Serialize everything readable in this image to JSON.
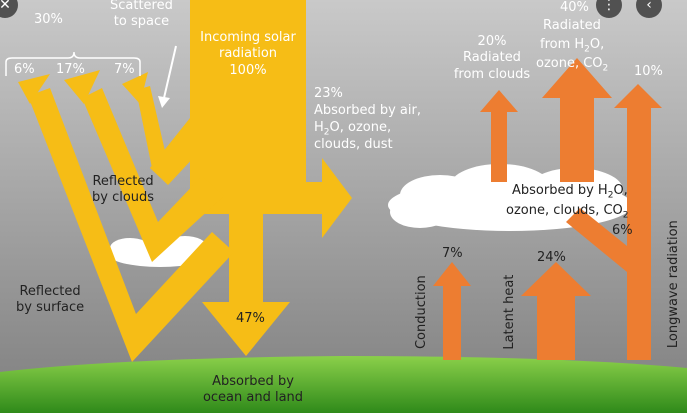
{
  "colors": {
    "sky_top": "#c9c9c9",
    "sky_bottom": "#7f7f7f",
    "ground_top": "#8bd04a",
    "ground_bottom": "#2f8a1a",
    "solar": "#f6bd16",
    "longwave": "#ed7d31",
    "cloud": "#ffffff"
  },
  "labels": {
    "scattered": "Scattered\nto space",
    "pct_30": "30%",
    "pct_6": "6%",
    "pct_17": "17%",
    "pct_7": "7%",
    "incoming": "Incoming solar\nradiation\n100%",
    "absorbed_air_pct": "23%",
    "absorbed_air_line1": "Absorbed by air,",
    "absorbed_air_line2_a": "H",
    "absorbed_air_line2_sub": "2",
    "absorbed_air_line2_b": "O, ozone,",
    "absorbed_air_line3": "clouds, dust",
    "reflected_clouds": "Reflected\nby clouds",
    "reflected_surface": "Reflected\nby surface",
    "absorbed_ocean_pct": "47%",
    "absorbed_ocean": "Absorbed by\nocean and land",
    "radiated_clouds": "20%\nRadiated\nfrom clouds",
    "radiated_h2o_pct": "40%",
    "radiated_h2o_line1": "Radiated",
    "radiated_h2o_line2_a": "from H",
    "radiated_h2o_line2_sub": "2",
    "radiated_h2o_line2_b": "O,",
    "radiated_h2o_line3_a": "ozone, CO",
    "radiated_h2o_line3_sub": "2",
    "pct_10": "10%",
    "absorbed_h2o_line1_a": "Absorbed by H",
    "absorbed_h2o_line1_sub": "2",
    "absorbed_h2o_line1_b": "O,",
    "absorbed_h2o_line2_a": "ozone, clouds, CO",
    "absorbed_h2o_line2_sub": "2",
    "absorbed_h2o_pct": "6%",
    "conduction_pct": "7%",
    "latent_pct": "24%",
    "conduction": "Conduction",
    "latent_heat": "Latent heat",
    "longwave_radiation": "Longwave radiation"
  },
  "overlay_icons": [
    "close-icon",
    "more-options-icon",
    "back-arrow-icon"
  ]
}
